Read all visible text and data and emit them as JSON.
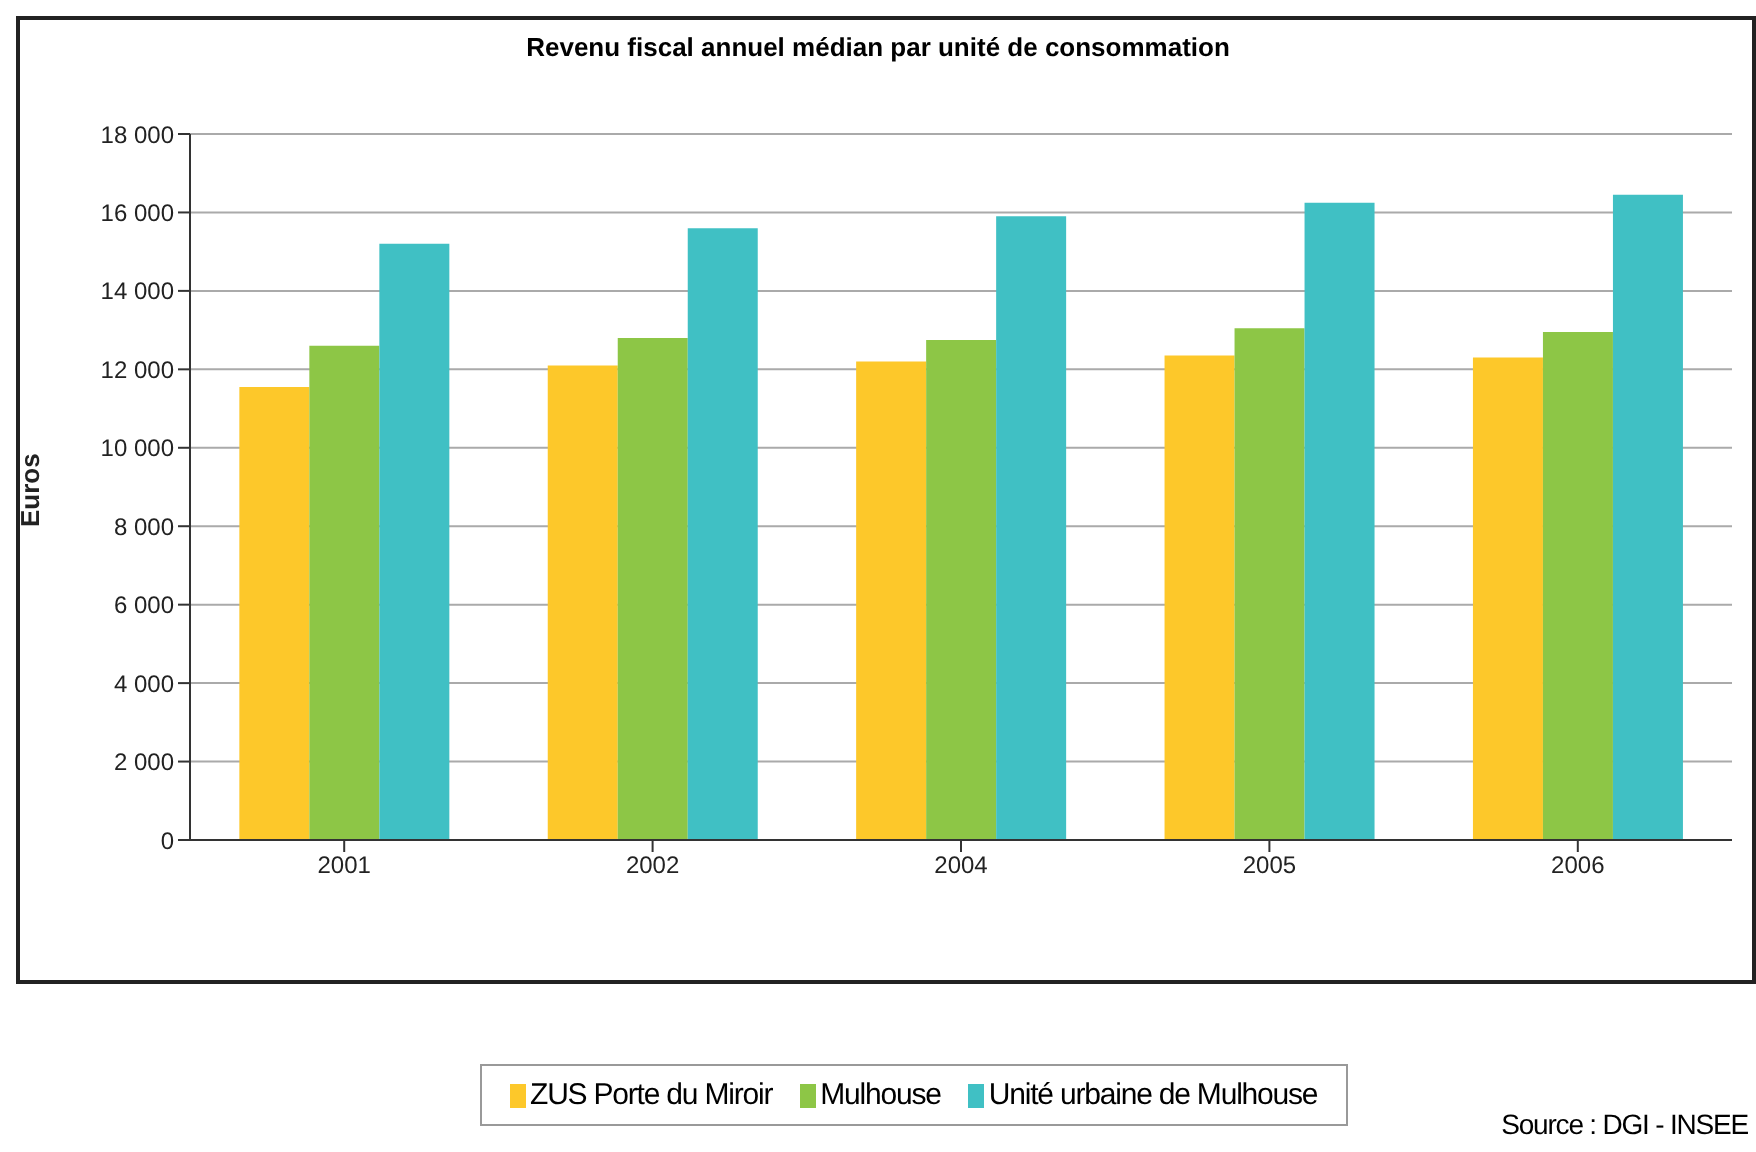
{
  "chart_data": {
    "type": "bar",
    "title": "Revenu fiscal annuel médian par unité de consommation",
    "ylabel": "Euros",
    "categories": [
      "2001",
      "2002",
      "2004",
      "2005",
      "2006"
    ],
    "series": [
      {
        "name": "ZUS Porte du Miroir",
        "color": "#fdc82a",
        "values": [
          11550,
          12100,
          12200,
          12350,
          12300
        ]
      },
      {
        "name": "Mulhouse",
        "color": "#8dc646",
        "values": [
          12600,
          12800,
          12750,
          13050,
          12950
        ]
      },
      {
        "name": "Unité urbaine de Mulhouse",
        "color": "#40c0c4",
        "values": [
          15200,
          15600,
          15900,
          16250,
          16450
        ]
      }
    ],
    "ylim": [
      0,
      18000
    ],
    "yticks": [
      {
        "value": 0,
        "label": "0"
      },
      {
        "value": 2000,
        "label": "2 000"
      },
      {
        "value": 4000,
        "label": "4 000"
      },
      {
        "value": 6000,
        "label": "6 000"
      },
      {
        "value": 8000,
        "label": "8 000"
      },
      {
        "value": 10000,
        "label": "10 000"
      },
      {
        "value": 12000,
        "label": "12 000"
      },
      {
        "value": 14000,
        "label": "14 000"
      },
      {
        "value": 16000,
        "label": "16 000"
      },
      {
        "value": 18000,
        "label": "18 000"
      }
    ],
    "grid": "y",
    "legend": "bottom",
    "annotations": [
      "Source : DGI - INSEE"
    ]
  }
}
